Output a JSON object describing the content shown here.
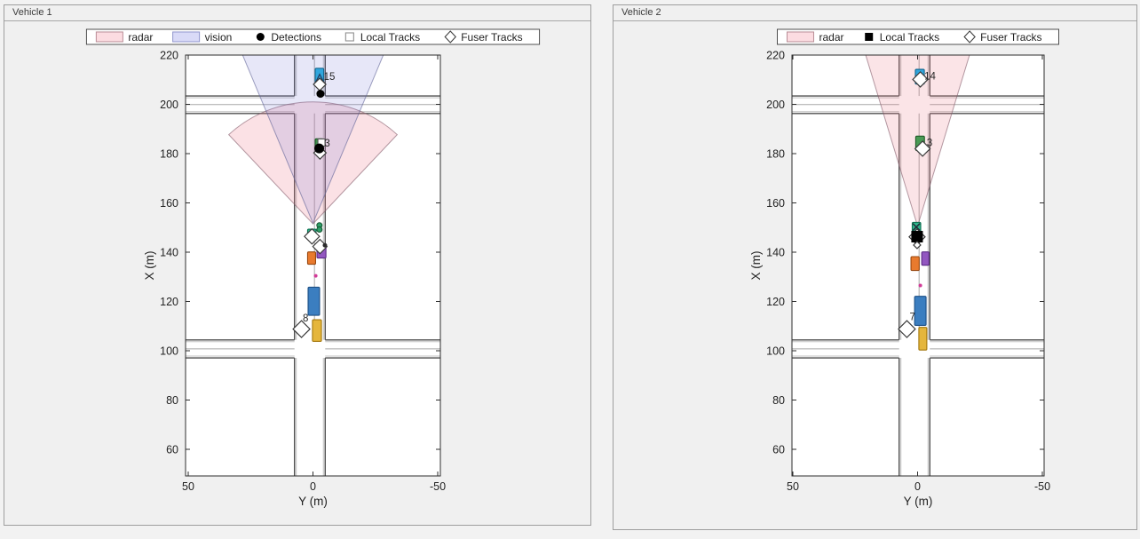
{
  "figure": {
    "background": "#f2f2f2",
    "panel_background": "#f0f0f0"
  },
  "chart_data": {
    "type": "birds-eye-plot",
    "roads": {
      "vertical": {
        "left_y": 7.4,
        "right_y": -4.9,
        "lane_y": -0.6
      },
      "horizontal": [
        {
          "top_x": 203.4,
          "bottom_x": 196.3,
          "lane_x": 199.9
        },
        {
          "top_x": 104.4,
          "bottom_x": 97.1,
          "lane_x": 100.75
        }
      ],
      "edge_color": "#4f4f4f",
      "inner_color": "#c0c0c0",
      "lane_color": "#a8a8a8"
    },
    "panels": [
      {
        "title": "Vehicle 1",
        "axes": {
          "xlabel": "Y (m)",
          "ylabel": "X (m)",
          "x_ticks": [
            50,
            0,
            -50
          ],
          "y_ticks": [
            220,
            200,
            180,
            160,
            140,
            120,
            100,
            80,
            60
          ],
          "x_lim": [
            51,
            -51
          ],
          "y_lim": [
            49,
            220
          ]
        },
        "legend": [
          {
            "type": "patch",
            "label": "radar",
            "fill": "#fcdce1",
            "edge": "#b98d96"
          },
          {
            "type": "patch",
            "label": "vision",
            "fill": "#d9daf7",
            "edge": "#9095cc"
          },
          {
            "type": "circle-filled",
            "label": "Detections",
            "color": "#000000"
          },
          {
            "type": "square-open",
            "label": "Local Tracks",
            "color": "#8f8f8f"
          },
          {
            "type": "diamond-open",
            "label": "Fuser Tracks",
            "color": "#3f3f3f"
          }
        ],
        "coverage": [
          {
            "name": "radar",
            "shape": "sector",
            "apex_y": 0,
            "apex_x": 151.5,
            "range": 49.5,
            "half_angle_deg": 43,
            "fill": "rgba(236,120,136,0.22)",
            "edge": "rgba(130,90,105,0.6)"
          },
          {
            "name": "vision",
            "shape": "wedge",
            "apex_y": 0,
            "apex_x": 151.8,
            "far_x": 228,
            "half_width_far": 31.5,
            "fill": "rgba(110,112,214,0.17)",
            "edge": "rgba(95,98,150,0.6)"
          }
        ],
        "actors": [
          {
            "y": -2.6,
            "x": 211.7,
            "w": 3.4,
            "l": 5.8,
            "fill": "#30a6dd",
            "edge": "#13678f"
          },
          {
            "y": -2.5,
            "x": 183.5,
            "w": 3.2,
            "l": 5.0,
            "fill": "#418f4f",
            "edge": "#1d5a26"
          },
          {
            "y": 0.45,
            "x": 147.4,
            "w": 3.4,
            "l": 3.9,
            "fill": "#2db48b",
            "edge": "#0f7252"
          },
          {
            "y": -3.4,
            "x": 140.2,
            "w": 3.6,
            "l": 5.1,
            "fill": "#9257c0",
            "edge": "#5b2a86"
          },
          {
            "y": 0.55,
            "x": 137.6,
            "w": 3.2,
            "l": 5.0,
            "fill": "#e87a2e",
            "edge": "#98470f"
          },
          {
            "y": -0.35,
            "x": 120.1,
            "w": 4.6,
            "l": 11.4,
            "fill": "#3b7ec0",
            "edge": "#1d4f85"
          },
          {
            "y": -1.6,
            "x": 108.2,
            "w": 3.6,
            "l": 8.8,
            "fill": "#e5b63c",
            "edge": "#a3770d"
          }
        ],
        "markers": [
          {
            "kind": "triangle-open",
            "y": -2.7,
            "x": 210.6,
            "size": 9,
            "color": "#223b5f"
          },
          {
            "kind": "diamond-open",
            "y": -2.7,
            "x": 208.1,
            "size": 14,
            "color": "#3a3a3a"
          },
          {
            "kind": "circle-filled",
            "y": -3.0,
            "x": 204.3,
            "size": 9,
            "color": "#000000"
          },
          {
            "kind": "square-open",
            "y": -3.4,
            "x": 184.5,
            "size": 8,
            "color": "#555555"
          },
          {
            "kind": "diamond-open",
            "y": -2.8,
            "x": 180.3,
            "size": 14,
            "color": "#3a3a3a"
          },
          {
            "kind": "circle-filled",
            "y": -2.5,
            "x": 182.1,
            "size": 11,
            "color": "#000000"
          },
          {
            "kind": "circle-small",
            "y": -2.6,
            "x": 150.9,
            "size": 6,
            "color": "#2f9e68"
          },
          {
            "kind": "circle-small",
            "y": -2.6,
            "x": 149.2,
            "size": 6,
            "color": "#2f9e68"
          },
          {
            "kind": "diamond-open",
            "y": 0.4,
            "x": 146.4,
            "size": 17,
            "color": "#3a3a3a"
          },
          {
            "kind": "diamond-open",
            "y": -2.8,
            "x": 142.3,
            "size": 16,
            "color": "#3a3a3a"
          },
          {
            "kind": "dot",
            "y": -4.8,
            "x": 142.8,
            "size": 5,
            "color": "#2a2a2a"
          },
          {
            "kind": "dot",
            "y": -1.1,
            "x": 130.4,
            "size": 4,
            "color": "#d23b98"
          },
          {
            "kind": "diamond-open",
            "y": 4.6,
            "x": 108.8,
            "size": 19,
            "color": "#3a3a3a"
          }
        ],
        "track_labels": [
          {
            "text": "15",
            "y": -4.3,
            "x": 211.0
          },
          {
            "text": "3",
            "y": -4.6,
            "x": 184.0
          },
          {
            "text": "8",
            "y": 4.1,
            "x": 113.0
          }
        ]
      },
      {
        "title": "Vehicle 2",
        "axes": {
          "xlabel": "Y (m)",
          "ylabel": "X (m)",
          "x_ticks": [
            50,
            0,
            -50
          ],
          "y_ticks": [
            220,
            200,
            180,
            160,
            140,
            120,
            100,
            80,
            60
          ],
          "x_lim": [
            51,
            -51
          ],
          "y_lim": [
            49,
            220
          ]
        },
        "legend": [
          {
            "type": "patch",
            "label": "radar",
            "fill": "#fcdce1",
            "edge": "#b98d96"
          },
          {
            "type": "square-filled",
            "label": "Local Tracks",
            "color": "#000000"
          },
          {
            "type": "diamond-open",
            "label": "Fuser Tracks",
            "color": "#3f3f3f"
          }
        ],
        "coverage": [
          {
            "name": "radar",
            "shape": "wedge",
            "apex_y": 0,
            "apex_x": 150.6,
            "far_x": 228,
            "half_width_far": 23.2,
            "fill": "rgba(236,120,136,0.20)",
            "edge": "rgba(130,90,105,0.6)"
          }
        ],
        "actors": [
          {
            "y": -0.9,
            "x": 211.2,
            "w": 3.6,
            "l": 6.0,
            "fill": "#30a6dd",
            "edge": "#13678f"
          },
          {
            "y": -1.0,
            "x": 184.2,
            "w": 3.5,
            "l": 5.8,
            "fill": "#4a9a55",
            "edge": "#1d5a26"
          },
          {
            "y": 0.45,
            "x": 150.2,
            "w": 3.4,
            "l": 3.8,
            "fill": "#2db48b",
            "edge": "#0f7252"
          },
          {
            "y": -3.1,
            "x": 137.4,
            "w": 2.9,
            "l": 5.4,
            "fill": "#9257c0",
            "edge": "#5b2a86"
          },
          {
            "y": 1.0,
            "x": 135.4,
            "w": 3.3,
            "l": 5.6,
            "fill": "#e87a2e",
            "edge": "#98470f"
          },
          {
            "y": -1.1,
            "x": 116.2,
            "w": 4.6,
            "l": 11.8,
            "fill": "#3b7ec0",
            "edge": "#1d4f85"
          },
          {
            "y": -2.1,
            "x": 104.9,
            "w": 3.2,
            "l": 9.2,
            "fill": "#e5b63c",
            "edge": "#a3770d"
          }
        ],
        "markers": [
          {
            "kind": "diamond-open",
            "y": -1.1,
            "x": 210.1,
            "size": 17,
            "color": "#3a3a3a"
          },
          {
            "kind": "diamond-open",
            "y": -2.0,
            "x": 182.0,
            "size": 17,
            "color": "#3a3a3a"
          },
          {
            "kind": "x-cross",
            "y": 0.5,
            "x": 150.2,
            "size": 8,
            "color": "#1f2b38"
          },
          {
            "kind": "diamond-open",
            "y": 0.2,
            "x": 146.2,
            "size": 18,
            "color": "#3a3a3a"
          },
          {
            "kind": "square-filled",
            "y": 0.2,
            "x": 146.3,
            "size": 13,
            "color": "#000000"
          },
          {
            "kind": "diamond-open",
            "y": 0.2,
            "x": 142.9,
            "size": 8,
            "color": "#3a3a3a"
          },
          {
            "kind": "dot",
            "y": -1.1,
            "x": 126.5,
            "size": 4,
            "color": "#d23b98"
          },
          {
            "kind": "diamond-open",
            "y": 4.3,
            "x": 108.8,
            "size": 19,
            "color": "#3a3a3a"
          }
        ],
        "track_labels": [
          {
            "text": "14",
            "y": -2.7,
            "x": 211.2
          },
          {
            "text": "3",
            "y": -3.7,
            "x": 184.2
          },
          {
            "text": "7",
            "y": 3.2,
            "x": 113.5
          }
        ]
      }
    ]
  }
}
